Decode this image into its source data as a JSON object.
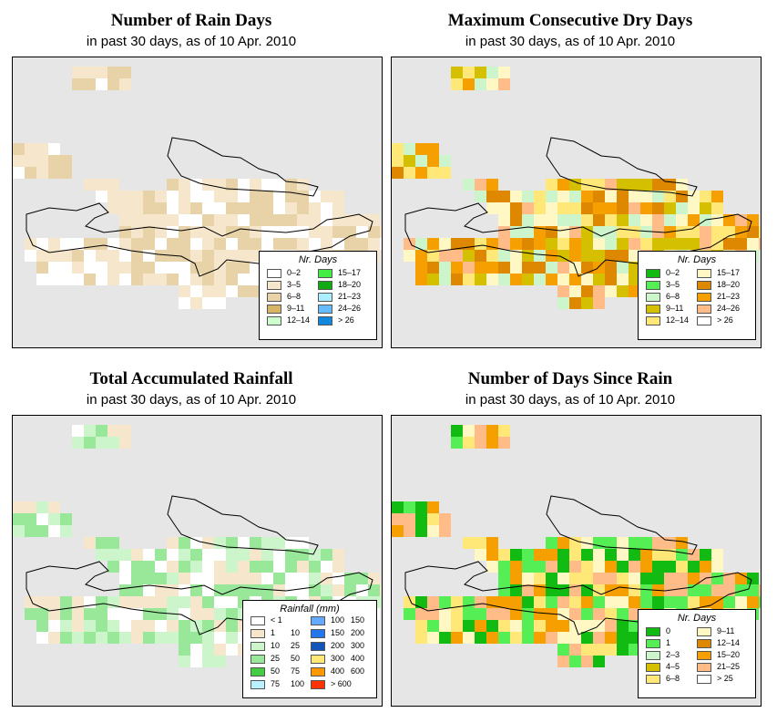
{
  "panels": [
    {
      "title": "Number of Rain Days",
      "subtitle": "in past 30 days, as of  10 Apr. 2010",
      "legend_title": "Nr. Days",
      "legend": [
        {
          "label": "0–2",
          "color": "#ffffff"
        },
        {
          "label": "3–5",
          "color": "#f5e6cc"
        },
        {
          "label": "6–8",
          "color": "#e8d2a8"
        },
        {
          "label": "9–11",
          "color": "#d8b466"
        },
        {
          "label": "12–14",
          "color": "#ccffcc"
        },
        {
          "label": "15–17",
          "color": "#44ee44"
        },
        {
          "label": "18–20",
          "color": "#11aa11"
        },
        {
          "label": "21–23",
          "color": "#aaeeff"
        },
        {
          "label": "24–26",
          "color": "#66bbff"
        },
        {
          "label": "> 26",
          "color": "#1188dd"
        }
      ],
      "palette": [
        "#ffffff",
        "#f5e6cc",
        "#e8d2a8"
      ]
    },
    {
      "title": "Maximum Consecutive Dry Days",
      "subtitle": "in past 30 days, as of  10 Apr. 2010",
      "legend_title": "Nr. Days",
      "legend": [
        {
          "label": "0–2",
          "color": "#11bb11"
        },
        {
          "label": "3–5",
          "color": "#55ee55"
        },
        {
          "label": "6–8",
          "color": "#ccf5cc"
        },
        {
          "label": "9–11",
          "color": "#d4c000"
        },
        {
          "label": "12–14",
          "color": "#ffe877"
        },
        {
          "label": "15–17",
          "color": "#fff8c4"
        },
        {
          "label": "18–20",
          "color": "#dd8800"
        },
        {
          "label": "21–23",
          "color": "#f5a000"
        },
        {
          "label": "24–26",
          "color": "#ffbb88"
        },
        {
          "label": "> 26",
          "color": "#ffffff"
        }
      ],
      "palette": [
        "#f5a000",
        "#dd8800",
        "#d4c000",
        "#ffe877",
        "#fff8c4",
        "#ccf5cc",
        "#ffbb88"
      ]
    },
    {
      "title": "Total Accumulated Rainfall",
      "subtitle": "in past 30 days, as of  10 Apr. 2010",
      "legend_title": "Rainfall (mm)",
      "legend": [
        {
          "from": "< 1",
          "to": "",
          "color": "#ffffff"
        },
        {
          "from": "1",
          "to": "10",
          "color": "#f5e6cc"
        },
        {
          "from": "10",
          "to": "25",
          "color": "#ccf5cc"
        },
        {
          "from": "25",
          "to": "50",
          "color": "#99e899"
        },
        {
          "from": "50",
          "to": "75",
          "color": "#44cc44"
        },
        {
          "from": "75",
          "to": "100",
          "color": "#bbf0ff"
        },
        {
          "from": "100",
          "to": "150",
          "color": "#66aaff"
        },
        {
          "from": "150",
          "to": "200",
          "color": "#2277ee"
        },
        {
          "from": "200",
          "to": "300",
          "color": "#1155bb"
        },
        {
          "from": "300",
          "to": "400",
          "color": "#ffe877"
        },
        {
          "from": "400",
          "to": "600",
          "color": "#ff9900"
        },
        {
          "from": "> 600",
          "to": "",
          "color": "#ff3300"
        }
      ],
      "palette": [
        "#f5e6cc",
        "#ccf5cc",
        "#99e899",
        "#ffffff"
      ]
    },
    {
      "title": "Number of Days Since Rain",
      "subtitle": "in past 30 days, as of  10 Apr. 2010",
      "legend_title": "Nr. Days",
      "legend": [
        {
          "label": "0",
          "color": "#11bb11"
        },
        {
          "label": "1",
          "color": "#55ee55"
        },
        {
          "label": "2–3",
          "color": "#ccf5cc"
        },
        {
          "label": "4–5",
          "color": "#d4c000"
        },
        {
          "label": "6–8",
          "color": "#ffe877"
        },
        {
          "label": "9–11",
          "color": "#fff8c4"
        },
        {
          "label": "12–14",
          "color": "#dd8800"
        },
        {
          "label": "15–20",
          "color": "#f5a000"
        },
        {
          "label": "21–25",
          "color": "#ffbb88"
        },
        {
          "label": "> 25",
          "color": "#ffffff"
        }
      ],
      "palette": [
        "#ffbb88",
        "#ffe877",
        "#11bb11",
        "#f5a000",
        "#fff8c4",
        "#55ee55"
      ]
    }
  ]
}
